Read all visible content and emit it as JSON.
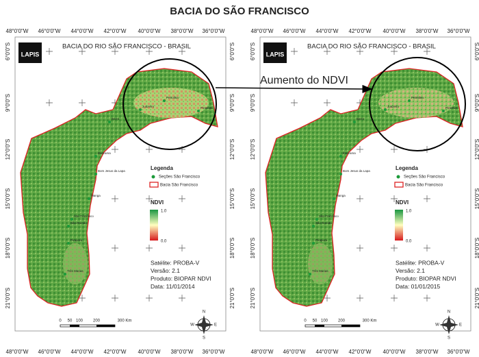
{
  "title": "BACIA DO SÃO FRANCISCO",
  "map_header": "BACIA DO RIO SÃO FRANCISCO - BRASIL",
  "logo": "LAPIS",
  "longitudes": [
    "48°0'0\"W",
    "46°0'0\"W",
    "44°0'0\"W",
    "42°0'0\"W",
    "40°0'0\"W",
    "38°0'0\"W",
    "36°0'0\"W"
  ],
  "latitudes": [
    "6°0'0\"S",
    "9°0'0\"S",
    "12°0'0\"S",
    "15°0'0\"S",
    "18°0'0\"S",
    "21°0'0\"S"
  ],
  "legend": {
    "title": "Legenda",
    "points": "Seções São Francisco",
    "basin": "Bacia São Francisco"
  },
  "ndvi": {
    "title": "NDVI",
    "max": "1.0",
    "min": "0.0"
  },
  "info": [
    "Satélite: PROBA-V",
    "Versão: 2.1",
    "Produto: BIOPAR NDVI"
  ],
  "panels": [
    {
      "date": "Data: 11/01/2014"
    },
    {
      "date": "Data: 01/01/2015"
    }
  ],
  "cities": [
    "Juazeiro",
    "Petrolina",
    "Piranhas",
    "Barra",
    "Ibotirama",
    "Bom Jesus da Lapa",
    "Manga",
    "São Francisco",
    "São Romão",
    "Pirapora",
    "Três Marias"
  ],
  "scale": [
    "0",
    "50",
    "100",
    "200",
    "300 Km"
  ],
  "compass": [
    "N",
    "S",
    "W",
    "E"
  ],
  "annotation": "Aumento do NDVI"
}
